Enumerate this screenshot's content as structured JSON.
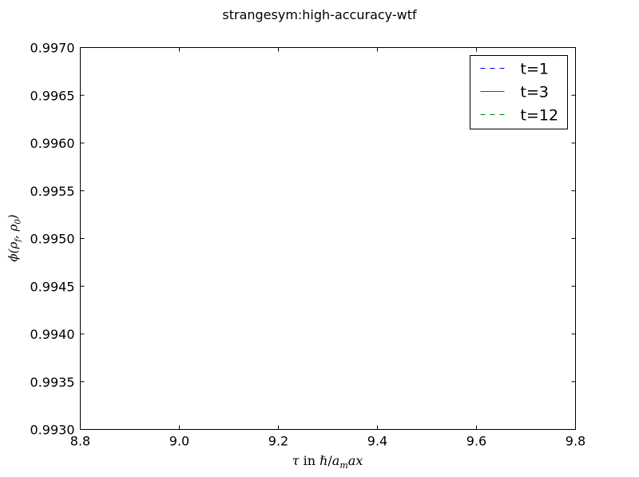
{
  "chart_data": {
    "type": "line",
    "title": "strangesym:high-accuracy-wtf",
    "xlabel": "τ in ℏ/a_m ax",
    "ylabel": "ϕ(ρ_f, ρ_0)",
    "xlim": [
      8.8,
      9.8
    ],
    "ylim": [
      0.993,
      0.997
    ],
    "xticks": [
      "8.8",
      "9.0",
      "9.2",
      "9.4",
      "9.6",
      "9.8"
    ],
    "yticks": [
      "0.9930",
      "0.9935",
      "0.9940",
      "0.9945",
      "0.9950",
      "0.9955",
      "0.9960",
      "0.9965",
      "0.9970"
    ],
    "grid": false,
    "legend_position": "top-right",
    "series": [
      {
        "name": "t=1",
        "color": "#0000ff",
        "style": "dashed",
        "x": [],
        "y": []
      },
      {
        "name": "t=3",
        "color": "#ff0000",
        "style": "solid",
        "x": [],
        "y": []
      },
      {
        "name": "t=12",
        "color": "#008000",
        "style": "dashed",
        "x": [],
        "y": []
      }
    ]
  }
}
